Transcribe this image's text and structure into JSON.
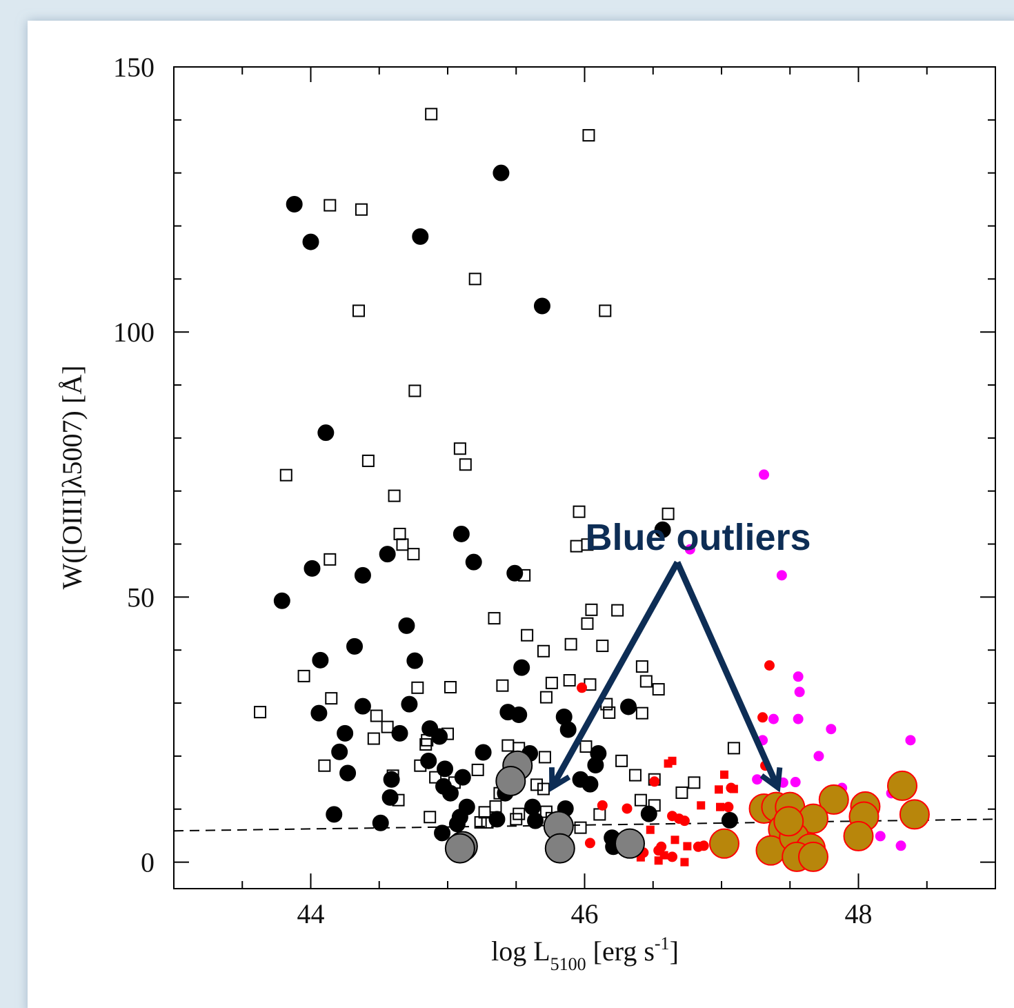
{
  "chart_data": {
    "type": "scatter",
    "xlabel_parts": [
      "log L",
      "5100",
      " [erg s",
      "-1",
      "]"
    ],
    "ylabel": "W([OIII]λ5007) [Å]",
    "annotation": "Blue outliers",
    "xlim": [
      43,
      49
    ],
    "ylim": [
      -5,
      150
    ],
    "xticks": [
      44,
      46,
      48
    ],
    "yticks": [
      0,
      50,
      100,
      150
    ],
    "xminorticks": [
      43.5,
      44.5,
      45,
      45.5,
      46.5,
      47,
      47.5,
      48.5
    ],
    "yminorticks": [
      10,
      20,
      30,
      40,
      60,
      70,
      80,
      90,
      110,
      120,
      130,
      140
    ],
    "fit_line": {
      "x": [
        43,
        49
      ],
      "y": [
        5.9,
        8.1
      ],
      "color": "#000000"
    },
    "series": [
      {
        "marker": "square",
        "size": "medium",
        "color": "none",
        "edgecolor": "#000000",
        "x": [
          44.88,
          46.03,
          44.14,
          44.37,
          45.2,
          44.35,
          46.15,
          44.76,
          43.82,
          44.42,
          45.09,
          45.13,
          44.61,
          45.96,
          46.61,
          44.65,
          44.67,
          44.75,
          44.14,
          46.02,
          45.94,
          45.56,
          46.05,
          46.24,
          45.34,
          46.02,
          45.58,
          45.7,
          45.9,
          46.13,
          43.95,
          46.42,
          46.45,
          46.54,
          44.78,
          45.02,
          45.4,
          45.76,
          45.89,
          46.04,
          43.63,
          44.15,
          45.72,
          46.16,
          46.18,
          46.42,
          44.48,
          44.56,
          44.46,
          45.0,
          44.85,
          44.84,
          47.09,
          45.44,
          45.52,
          46.01,
          44.1,
          44.8,
          46.27,
          45.22,
          44.91,
          45.05,
          44.64,
          44.6,
          45.65,
          45.7,
          45.71,
          46.37,
          46.51,
          46.8,
          46.71,
          46.41,
          46.51,
          45.38,
          45.35,
          45.27,
          45.29,
          45.52,
          45.72,
          45.76,
          46.11,
          45.97,
          44.87,
          45.24,
          45.5
        ],
        "y": [
          141.1,
          137.1,
          123.9,
          123.1,
          110.0,
          104.0,
          104.0,
          88.9,
          73.0,
          75.7,
          78.0,
          75.0,
          69.1,
          66.1,
          65.7,
          61.9,
          59.9,
          58.1,
          57.1,
          59.9,
          59.6,
          54.1,
          47.6,
          47.5,
          46.0,
          45.0,
          42.8,
          39.8,
          41.1,
          40.8,
          35.1,
          36.9,
          34.1,
          32.6,
          32.9,
          33.0,
          33.3,
          33.8,
          34.3,
          33.5,
          28.3,
          30.9,
          31.1,
          29.8,
          28.2,
          28.1,
          27.6,
          25.5,
          23.3,
          24.2,
          23.0,
          22.2,
          21.5,
          22.0,
          21.5,
          21.8,
          18.2,
          18.2,
          19.1,
          17.4,
          16.0,
          15.0,
          11.7,
          16.3,
          14.6,
          13.8,
          19.8,
          16.4,
          15.6,
          15.0,
          13.1,
          11.7,
          10.7,
          13.0,
          10.5,
          9.4,
          7.5,
          9.1,
          9.5,
          8.3,
          9.0,
          6.5,
          8.5,
          7.5,
          8.1
        ]
      },
      {
        "marker": "circle",
        "size": "medium",
        "color": "#000000",
        "edgecolor": "#000000",
        "x": [
          43.88,
          44.0,
          44.8,
          45.39,
          45.69,
          44.11,
          43.79,
          44.01,
          44.38,
          44.56,
          45.1,
          45.19,
          45.49,
          46.57,
          44.7,
          44.32,
          44.07,
          44.76,
          45.54,
          44.06,
          44.38,
          44.72,
          44.65,
          44.25,
          44.87,
          44.94,
          44.21,
          44.27,
          44.17,
          44.51,
          44.59,
          44.58,
          44.86,
          44.98,
          44.97,
          45.02,
          45.11,
          45.26,
          45.44,
          45.52,
          45.85,
          45.88,
          45.6,
          45.42,
          45.36,
          45.62,
          45.64,
          45.86,
          45.97,
          46.04,
          46.08,
          46.1,
          46.32,
          44.96,
          45.07,
          45.09,
          45.14,
          46.2,
          46.21,
          46.47,
          47.06
        ],
        "y": [
          124.1,
          117.0,
          118.0,
          130.0,
          104.9,
          81.0,
          49.3,
          55.4,
          54.1,
          58.1,
          61.9,
          56.6,
          54.5,
          62.7,
          44.6,
          40.7,
          38.1,
          38.0,
          36.7,
          28.1,
          29.4,
          29.8,
          24.3,
          24.3,
          25.2,
          23.7,
          20.8,
          16.8,
          9.0,
          7.4,
          15.6,
          12.2,
          19.1,
          17.6,
          14.3,
          13.0,
          16.0,
          20.7,
          28.3,
          27.8,
          27.4,
          25.0,
          20.5,
          13.0,
          8.1,
          10.4,
          7.8,
          10.1,
          15.6,
          14.7,
          18.3,
          20.5,
          29.3,
          5.5,
          7.2,
          8.5,
          10.4,
          4.6,
          2.9,
          9.1,
          7.9
        ]
      },
      {
        "marker": "circle",
        "size": "small",
        "color": "#ff0000",
        "edgecolor": "#ff0000",
        "x": [
          45.98,
          47.35,
          47.3,
          46.13,
          46.04,
          46.31,
          46.43,
          46.51,
          46.64,
          46.69,
          46.73,
          46.54,
          46.56,
          46.64,
          46.83,
          46.87,
          47.05,
          47.07,
          47.32
        ],
        "y": [
          32.9,
          37.1,
          27.3,
          10.7,
          3.6,
          10.1,
          1.8,
          15.2,
          8.7,
          8.2,
          7.8,
          2.2,
          2.9,
          1.0,
          2.9,
          3.1,
          10.4,
          14.0,
          18.2
        ]
      },
      {
        "marker": "square",
        "size": "small",
        "color": "#ff0000",
        "edgecolor": "#ff0000",
        "x": [
          46.64,
          46.61,
          47.02,
          46.98,
          47.09,
          46.85,
          46.48,
          46.75,
          46.66,
          46.54,
          46.73,
          46.58,
          46.41,
          46.99
        ],
        "y": [
          19.1,
          18.6,
          16.5,
          13.7,
          13.8,
          10.7,
          6.1,
          3.0,
          4.2,
          0.3,
          0.0,
          1.3,
          0.9,
          10.4
        ]
      },
      {
        "marker": "circle",
        "size": "small",
        "color": "#ff00ff",
        "edgecolor": "#ff00ff",
        "x": [
          47.31,
          46.77,
          47.44,
          47.56,
          47.57,
          47.38,
          47.56,
          47.8,
          48.38,
          47.71,
          47.3,
          47.45,
          47.54,
          47.26,
          47.88,
          48.24,
          48.0,
          47.56,
          48.16,
          48.31,
          47.49,
          47.25
        ],
        "y": [
          73.1,
          59.0,
          54.1,
          35.0,
          32.1,
          27.0,
          27.0,
          25.1,
          23.0,
          20.0,
          23.0,
          15.0,
          15.1,
          15.6,
          14.0,
          13.0,
          11.1,
          6.9,
          4.9,
          3.1,
          3.1,
          11.1
        ]
      },
      {
        "marker": "circle",
        "size": "large",
        "color": "#808080",
        "edgecolor": "#000000",
        "x": [
          45.51,
          45.46,
          45.81,
          45.82,
          45.11,
          45.09,
          46.33
        ],
        "y": [
          18.2,
          15.3,
          6.8,
          2.6,
          3.0,
          2.6,
          3.5
        ]
      },
      {
        "marker": "circle",
        "size": "large",
        "color": "#b8860b",
        "edgecolor": "#ff0000",
        "x": [
          47.02,
          48.32,
          48.41,
          47.82,
          48.05,
          48.04,
          48.0,
          47.31,
          47.4,
          47.5,
          47.67,
          47.45,
          47.36,
          47.53,
          47.65,
          47.55,
          47.67,
          47.49
        ],
        "y": [
          3.5,
          14.4,
          9.0,
          11.8,
          10.5,
          8.6,
          4.9,
          10.1,
          10.4,
          10.4,
          8.2,
          6.2,
          2.2,
          4.7,
          2.6,
          1.0,
          1.0,
          7.7
        ]
      }
    ]
  }
}
